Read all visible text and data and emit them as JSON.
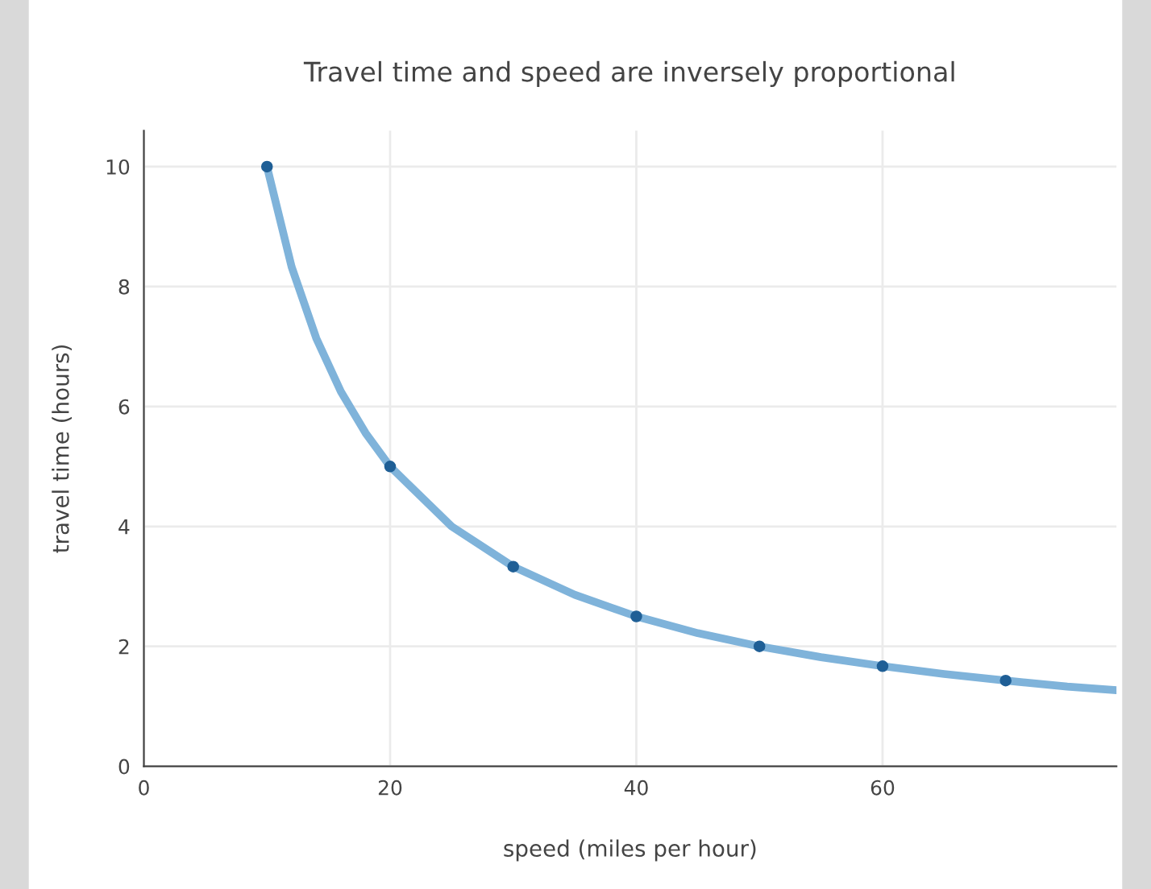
{
  "chart_data": {
    "type": "line",
    "title": "Travel time and speed are inversely proportional",
    "xlabel": "speed (miles per hour)",
    "ylabel": "travel time (hours)",
    "xlim": [
      0,
      79
    ],
    "ylim": [
      0,
      10.6
    ],
    "xticks": [
      0,
      20,
      40,
      60
    ],
    "yticks": [
      0,
      2,
      4,
      6,
      8,
      10
    ],
    "grid": true,
    "legend": false,
    "series": [
      {
        "color": "#7fb3da",
        "marker": "none",
        "line_style": "solid",
        "x": [
          10,
          12,
          14,
          16,
          18,
          20,
          25,
          30,
          35,
          40,
          45,
          50,
          55,
          60,
          65,
          70,
          75,
          79
        ],
        "values": [
          10,
          8.33,
          7.14,
          6.25,
          5.56,
          5,
          4,
          3.33,
          2.86,
          2.5,
          2.22,
          2,
          1.82,
          1.67,
          1.54,
          1.43,
          1.33,
          1.27
        ]
      },
      {
        "type": "scatter",
        "color": "#1f5f96",
        "marker": "circle",
        "x": [
          10,
          20,
          30,
          40,
          50,
          60,
          70
        ],
        "values": [
          10,
          5,
          3.33,
          2.5,
          2,
          1.67,
          1.43
        ]
      }
    ]
  }
}
